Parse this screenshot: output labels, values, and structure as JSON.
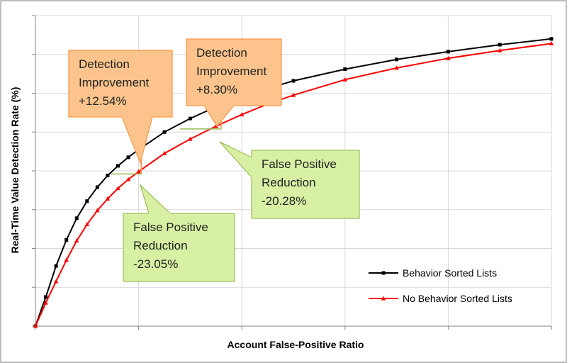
{
  "chart_data": {
    "type": "line",
    "xlabel": "Account False-Positive Ratio",
    "ylabel": "Real-Time Value Detection Rate (%)",
    "xlim": [
      0,
      10
    ],
    "ylim": [
      0,
      8
    ],
    "grid": true,
    "x_tick_labels_shown": false,
    "y_tick_labels_shown": false,
    "legend_position": "bottom-right",
    "series": [
      {
        "name": "Behavior Sorted Lists",
        "color": "#000000",
        "marker": "square",
        "x": [
          0,
          0.2,
          0.4,
          0.6,
          0.8,
          1.0,
          1.2,
          1.4,
          1.6,
          1.8,
          2.0,
          2.5,
          3.0,
          3.5,
          4.0,
          4.5,
          5.0,
          6.0,
          7.0,
          8.0,
          9.0,
          10.0
        ],
        "y": [
          0,
          0.75,
          1.55,
          2.22,
          2.78,
          3.22,
          3.58,
          3.88,
          4.13,
          4.35,
          4.55,
          5.0,
          5.35,
          5.65,
          5.9,
          6.12,
          6.32,
          6.62,
          6.87,
          7.07,
          7.25,
          7.4
        ]
      },
      {
        "name": "No Behavior Sorted Lists",
        "color": "#ff0000",
        "marker": "triangle",
        "x": [
          0,
          0.2,
          0.4,
          0.6,
          0.8,
          1.0,
          1.2,
          1.4,
          1.6,
          1.8,
          2.0,
          2.5,
          3.0,
          3.5,
          4.0,
          4.5,
          5.0,
          6.0,
          7.0,
          8.0,
          9.0,
          10.0
        ],
        "y": [
          0,
          0.6,
          1.15,
          1.7,
          2.2,
          2.62,
          2.98,
          3.28,
          3.55,
          3.78,
          3.98,
          4.45,
          4.82,
          5.15,
          5.45,
          5.72,
          5.95,
          6.35,
          6.65,
          6.9,
          7.1,
          7.28
        ]
      }
    ],
    "annotations": [
      {
        "kind": "detection",
        "lines": [
          "Detection",
          "Improvement",
          "+12.54%"
        ],
        "x": 2.05,
        "y_from": 3.92,
        "y_to": 4.41
      },
      {
        "kind": "detection",
        "lines": [
          "Detection",
          "Improvement",
          "+8.30%"
        ],
        "x": 3.6,
        "y_from": 5.08,
        "y_to": 5.5
      },
      {
        "kind": "false_positive",
        "lines": [
          "False Positive",
          "Reduction",
          "-23.05%"
        ],
        "y": 3.92,
        "x_from": 1.45,
        "x_to": 2.05
      },
      {
        "kind": "false_positive",
        "lines": [
          "False Positive",
          "Reduction",
          "-20.28%"
        ],
        "y": 5.08,
        "x_from": 2.8,
        "x_to": 3.6
      }
    ],
    "colors": {
      "callout_orange_fill": "#fcc48c",
      "callout_orange_stroke": "#f79646",
      "callout_green_fill": "#d7f0a4",
      "callout_green_stroke": "#9bbb59",
      "grid": "#d9d9d9",
      "axis": "#868686",
      "frame": "#a6a6a6"
    }
  }
}
